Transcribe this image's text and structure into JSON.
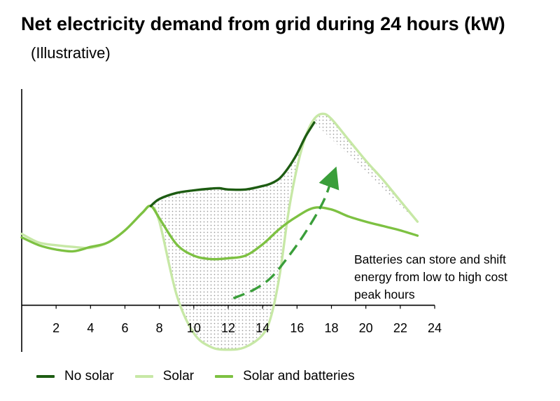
{
  "title": "Net electricity demand from grid during 24 hours (kW)",
  "subtitle": "(Illustrative)",
  "annotation": "Batteries can store and shift energy from low to high cost peak hours",
  "colors": {
    "no_solar": "#1d5c12",
    "solar": "#c7e8a6",
    "solar_and_batteries": "#7dc142",
    "arrow": "#3a9e3a",
    "fill_dots": "#9a9a9a"
  },
  "chart_data": {
    "type": "line",
    "x_ticks": [
      "2",
      "4",
      "6",
      "8",
      "10",
      "12",
      "14",
      "16",
      "18",
      "20",
      "22",
      "24"
    ],
    "xlim": [
      0,
      24
    ],
    "ylim": [
      -2.6,
      12.5
    ],
    "grid": false,
    "legend_position": "bottom",
    "series": [
      {
        "name": "No solar",
        "x": [
          7.5,
          8,
          9,
          10,
          11,
          11.5,
          12,
          13,
          14,
          14.5,
          15,
          15.5,
          16,
          16.5,
          17
        ],
        "y": [
          5.7,
          6.1,
          6.45,
          6.6,
          6.7,
          6.72,
          6.65,
          6.65,
          6.85,
          7.0,
          7.3,
          7.9,
          8.7,
          9.7,
          10.5
        ]
      },
      {
        "name": "Solar",
        "x": [
          0,
          1,
          2,
          3,
          4,
          5,
          6,
          7,
          7.5,
          8,
          9,
          10,
          11,
          12,
          13,
          14,
          14.5,
          15,
          15.5,
          16,
          16.5,
          17,
          17.5,
          18,
          19,
          20,
          21,
          22,
          23
        ],
        "y": [
          4.1,
          3.6,
          3.45,
          3.35,
          3.3,
          3.6,
          4.3,
          5.3,
          5.7,
          4.8,
          0.6,
          -1.6,
          -2.4,
          -2.55,
          -2.4,
          -1.7,
          -0.6,
          1.8,
          5.3,
          7.9,
          9.7,
          10.7,
          11.0,
          10.7,
          9.5,
          8.3,
          7.2,
          6.0,
          4.8
        ],
        "fill_to_series": "No solar"
      },
      {
        "name": "Solar and batteries",
        "x": [
          0,
          1,
          2,
          3,
          4,
          5,
          6,
          7,
          7.5,
          8,
          9,
          10,
          11,
          12,
          13,
          14,
          15,
          16,
          17,
          18,
          19,
          20,
          21,
          22,
          23
        ],
        "y": [
          3.9,
          3.45,
          3.2,
          3.1,
          3.35,
          3.6,
          4.3,
          5.3,
          5.7,
          5.0,
          3.5,
          2.85,
          2.65,
          2.7,
          2.85,
          3.5,
          4.4,
          5.1,
          5.6,
          5.5,
          5.1,
          4.8,
          4.55,
          4.3,
          4.0
        ]
      }
    ],
    "arrow": {
      "x": [
        12.3,
        13.5,
        14.5,
        15.5,
        16.5,
        17.5,
        18.0
      ],
      "y": [
        0.4,
        0.9,
        1.6,
        2.8,
        4.2,
        5.9,
        7.2
      ]
    }
  },
  "legend": [
    {
      "label": "No solar",
      "color": "#1d5c12"
    },
    {
      "label": "Solar",
      "color": "#c7e8a6"
    },
    {
      "label": "Solar and batteries",
      "color": "#7dc142"
    }
  ]
}
